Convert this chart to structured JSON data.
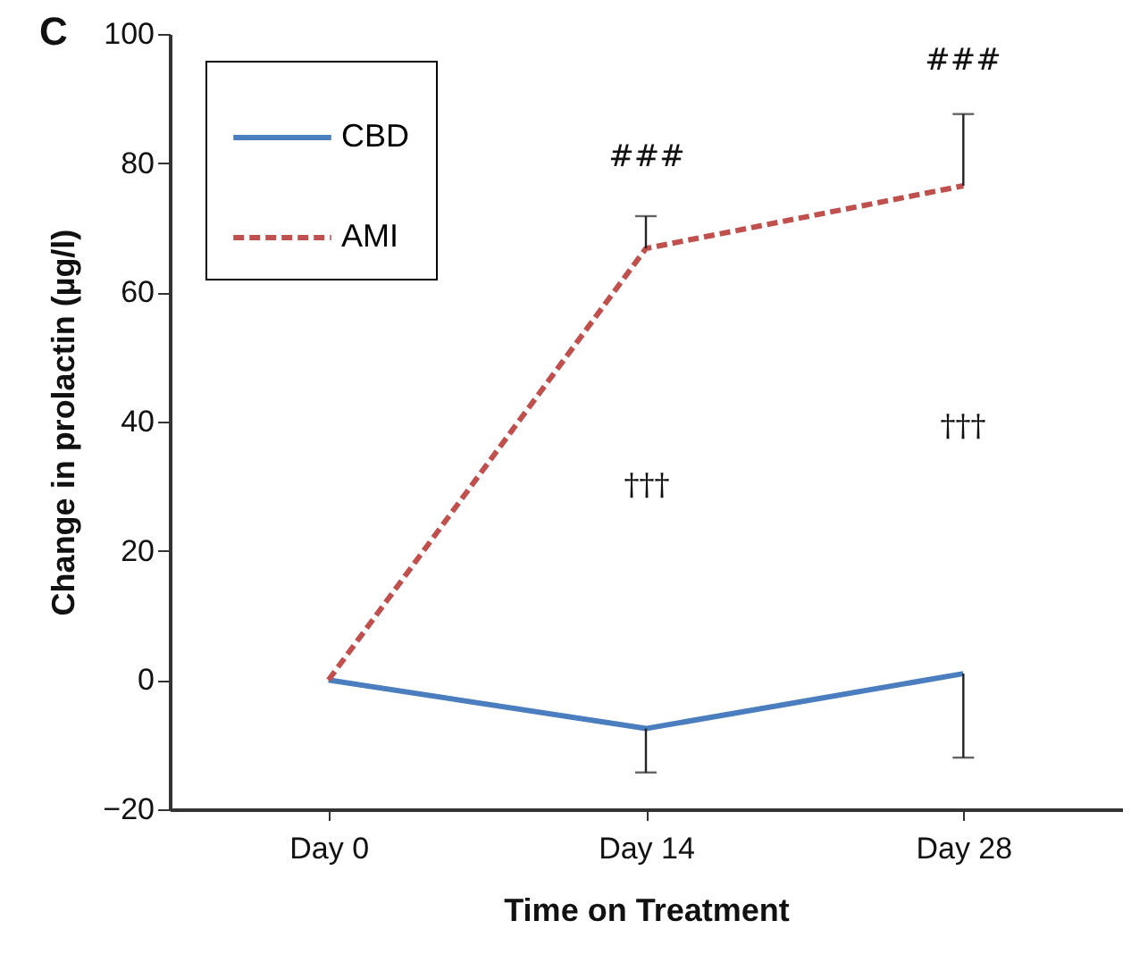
{
  "chart_data": {
    "type": "line",
    "xlabel": "Time on Treatment",
    "ylabel": "Change in prolactin (µg/l)",
    "categories": [
      "Day 0",
      "Day 14",
      "Day 28"
    ],
    "series": [
      {
        "name": "CBD",
        "color": "#4a7ebf",
        "line_style": "solid",
        "values": [
          0,
          -7.5,
          1
        ],
        "errors": [
          null,
          [
            -14.3,
            -7.5
          ],
          [
            -12,
            1
          ]
        ]
      },
      {
        "name": "AMI",
        "color": "#c0504d",
        "line_style": "dashed",
        "values": [
          0,
          66.8,
          76.5
        ],
        "errors": [
          null,
          [
            66.8,
            71.8
          ],
          [
            76.5,
            87.6
          ]
        ]
      }
    ],
    "ylim": [
      -20,
      100
    ],
    "yticks": [
      -20,
      0,
      20,
      40,
      60,
      80,
      100
    ],
    "grid": false,
    "legend": "top left",
    "marker": "none",
    "annotations": [
      "C",
      "###",
      "###",
      "†††",
      "†††"
    ]
  }
}
